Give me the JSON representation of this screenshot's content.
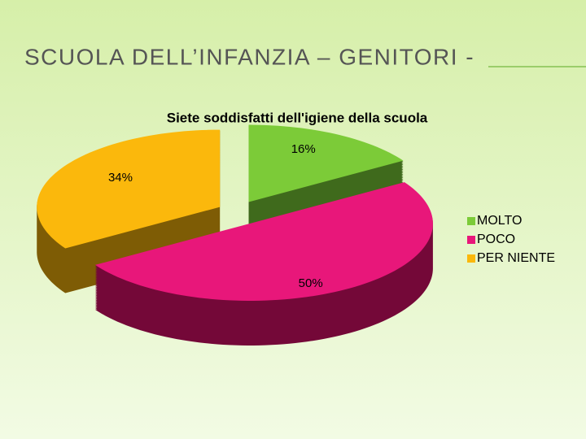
{
  "slide_title": "SCUOLA DELL’INFANZIA – GENITORI -",
  "chart_data": {
    "type": "pie3d",
    "title": "Siete soddisfatti dell'igiene della scuola",
    "categories": [
      "MOLTO",
      "POCO",
      "PER NIENTE"
    ],
    "values": [
      16,
      50,
      34
    ],
    "value_labels": [
      "16%",
      "50%",
      "34%"
    ],
    "colors": [
      "#7ccb38",
      "#e8177a",
      "#fbb80c"
    ],
    "side_colors": [
      "#3f6a1c",
      "#740838",
      "#7e5c05"
    ],
    "legend": "right"
  }
}
